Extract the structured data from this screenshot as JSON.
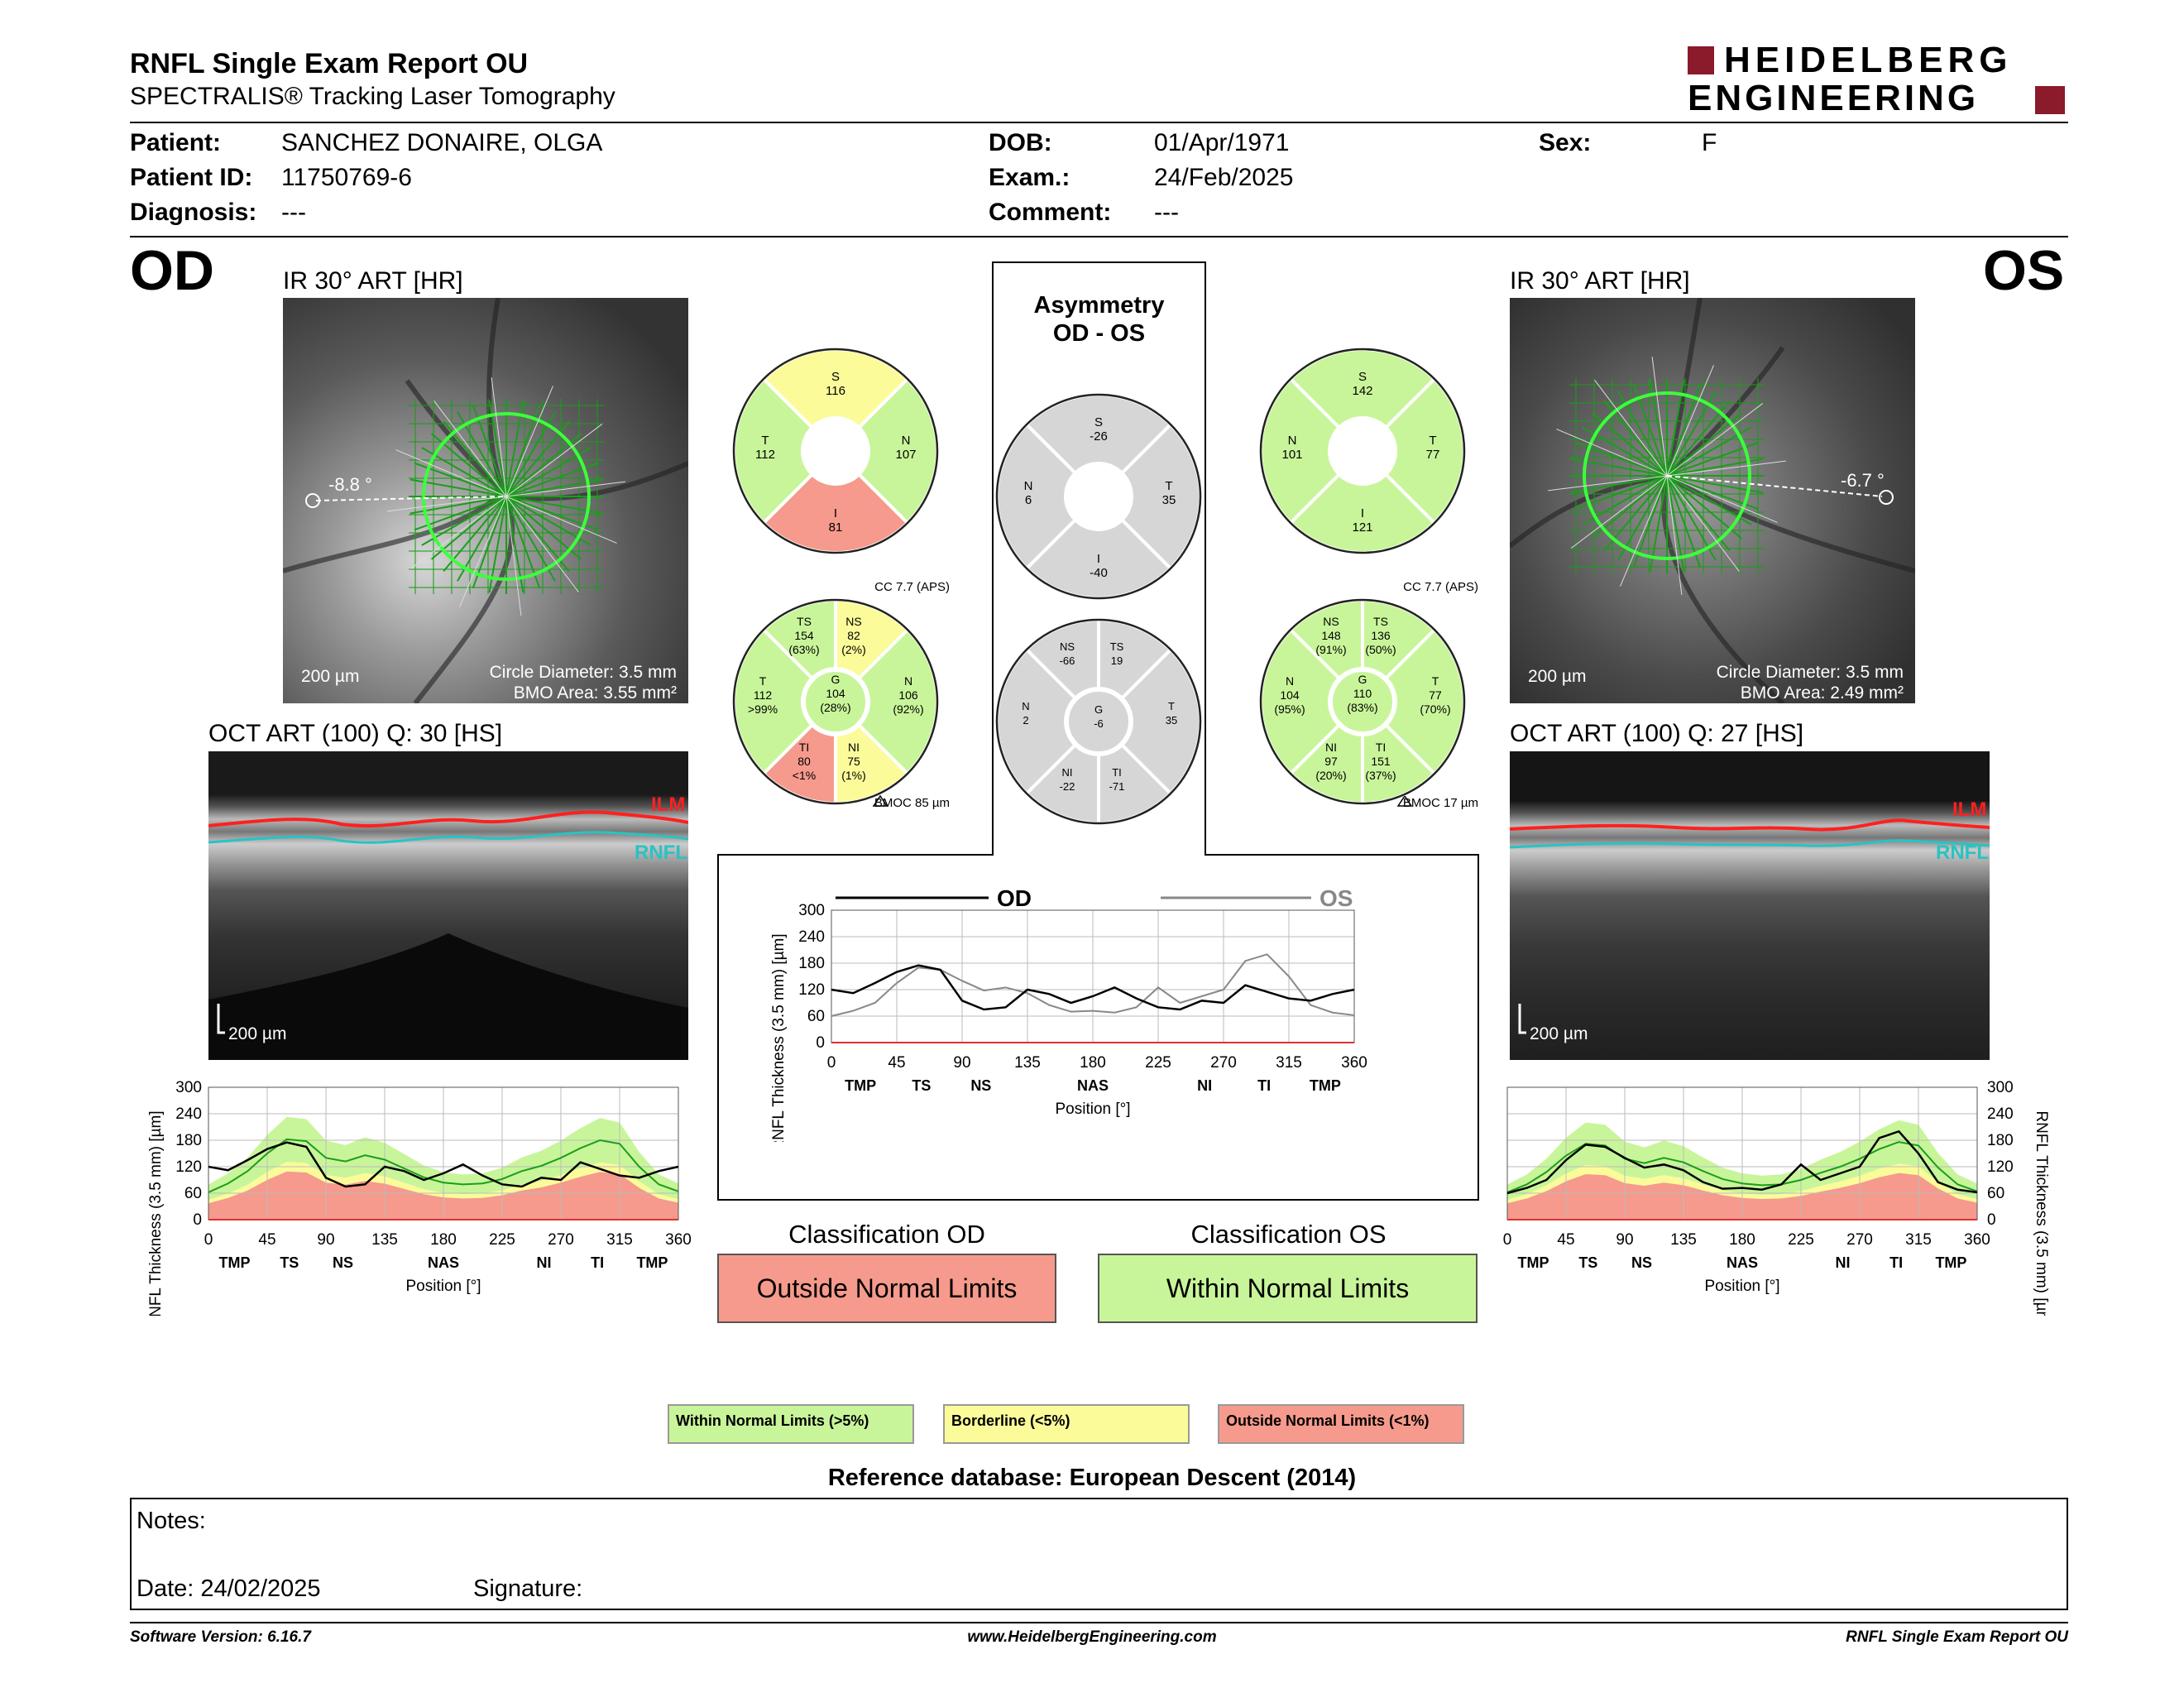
{
  "header": {
    "title": "RNFL Single Exam Report OU",
    "subtitle": "SPECTRALIS® Tracking Laser Tomography",
    "logo_line1": "HEIDELBERG",
    "logo_line2": "ENGINEERING"
  },
  "patient": {
    "patient_label": "Patient:",
    "patient_value": "SANCHEZ DONAIRE, OLGA",
    "id_label": "Patient ID:",
    "id_value": "11750769-6",
    "diagnosis_label": "Diagnosis:",
    "diagnosis_value": "---",
    "dob_label": "DOB:",
    "dob_value": "01/Apr/1971",
    "exam_label": "Exam.:",
    "exam_value": "24/Feb/2025",
    "comment_label": "Comment:",
    "comment_value": "---",
    "sex_label": "Sex:",
    "sex_value": "F"
  },
  "od": {
    "eye": "OD",
    "ir_caption": "IR 30° ART [HR]",
    "angle": "-8.8 °",
    "scale": "200 µm",
    "circle_diameter": "Circle Diameter: 3.5 mm",
    "bmo_area": "BMO Area: 3.55 mm²",
    "oct_caption": "OCT ART (100) Q: 30 [HS]",
    "oct_scale": "200 µm",
    "ilm": "ILM",
    "rnfl": "RNFL",
    "classification_label": "Classification OD",
    "classification_value": "Outside Normal Limits",
    "cc": "CC 7.7 (APS)",
    "bmoc": "BMOC 85 µm",
    "quad": {
      "S": "116",
      "T": "112",
      "N": "107",
      "I": "81"
    },
    "sector": {
      "TS": [
        "154",
        "(63%)"
      ],
      "NS": [
        "82",
        "(2%)"
      ],
      "T": [
        "112",
        ">99%"
      ],
      "G": [
        "104",
        "(28%)"
      ],
      "N": [
        "106",
        "(92%)"
      ],
      "TI": [
        "80",
        "<1%"
      ],
      "NI": [
        "75",
        "(1%)"
      ]
    }
  },
  "os": {
    "eye": "OS",
    "ir_caption": "IR 30° ART [HR]",
    "angle": "-6.7 °",
    "scale": "200 µm",
    "circle_diameter": "Circle Diameter: 3.5 mm",
    "bmo_area": "BMO Area: 2.49 mm²",
    "oct_caption": "OCT ART (100) Q: 27 [HS]",
    "oct_scale": "200 µm",
    "ilm": "ILM",
    "rnfl": "RNFL",
    "classification_label": "Classification OS",
    "classification_value": "Within Normal Limits",
    "cc": "CC 7.7 (APS)",
    "bmoc": "BMOC 17 µm",
    "quad": {
      "S": "142",
      "N": "101",
      "T": "77",
      "I": "121"
    },
    "sector": {
      "NS": [
        "148",
        "(91%)"
      ],
      "TS": [
        "136",
        "(50%)"
      ],
      "N": [
        "104",
        "(95%)"
      ],
      "G": [
        "110",
        "(83%)"
      ],
      "T": [
        "77",
        "(70%)"
      ],
      "NI": [
        "97",
        "(20%)"
      ],
      "TI": [
        "151",
        "(37%)"
      ]
    }
  },
  "asymmetry": {
    "title_line1": "Asymmetry",
    "title_line2": "OD - OS",
    "quad": {
      "S": "-26",
      "N": "6",
      "T": "35",
      "I": "-40"
    },
    "sector": {
      "NS": "-66",
      "TS": "19",
      "N": "2",
      "G": "-6",
      "T": "35",
      "NI": "-22",
      "TI": "-71"
    }
  },
  "legend": {
    "wnl": "Within Normal Limits (>5%)",
    "bl": "Borderline (<5%)",
    "onl": "Outside Normal Limits (<1%)",
    "reference": "Reference database: European Descent (2014)"
  },
  "notes": {
    "notes_label": "Notes:",
    "date_label": "Date: 24/02/2025",
    "signature_label": "Signature:"
  },
  "footer": {
    "version": "Software Version: 6.16.7",
    "website": "www.HeidelbergEngineering.com",
    "report": "RNFL Single Exam Report OU"
  },
  "colors": {
    "wnl": "#c9f59a",
    "bl": "#fbfb9a",
    "onl": "#f59a8c",
    "gray": "#d6d6d6",
    "logo_red": "#8b1a2b",
    "ilm": "#ff2020",
    "rnfl": "#29c3c3"
  },
  "chart_data": [
    {
      "type": "line",
      "id": "od-profile",
      "ylabel": "RNFL Thickness (3.5 mm) [µm]",
      "xlabel": "Position [°]",
      "ylim": [
        0,
        300
      ],
      "xlim": [
        0,
        360
      ],
      "yticks": [
        "0",
        "60",
        "120",
        "180",
        "240",
        "300"
      ],
      "xticks": [
        "0",
        "45",
        "90",
        "135",
        "180",
        "225",
        "270",
        "315",
        "360"
      ],
      "regions": [
        "TMP",
        "TS",
        "NS",
        "NAS",
        "NI",
        "TI",
        "TMP"
      ],
      "region_pos": [
        20,
        62,
        103,
        180,
        257,
        298,
        340
      ],
      "x": [
        0,
        15,
        30,
        45,
        60,
        75,
        90,
        105,
        120,
        135,
        150,
        165,
        180,
        195,
        210,
        225,
        240,
        255,
        270,
        285,
        300,
        315,
        330,
        345,
        360
      ],
      "series": [
        {
          "name": "OD",
          "values": [
            120,
            112,
            135,
            160,
            175,
            165,
            95,
            75,
            80,
            120,
            110,
            90,
            105,
            125,
            100,
            80,
            75,
            95,
            90,
            130,
            115,
            100,
            95,
            110,
            120
          ]
        },
        {
          "values": [
            62,
            82,
            110,
            150,
            182,
            178,
            140,
            132,
            146,
            136,
            116,
            96,
            84,
            80,
            82,
            92,
            110,
            122,
            140,
            162,
            180,
            172,
            120,
            80,
            64
          ]
        }
      ]
    },
    {
      "type": "line",
      "id": "os-profile",
      "ylabel": "RNFL Thickness (3.5 mm) [µm]",
      "xlabel": "Position [°]",
      "ylim": [
        0,
        300
      ],
      "xlim": [
        0,
        360
      ],
      "yticks": [
        "0",
        "60",
        "120",
        "180",
        "240",
        "300"
      ],
      "xticks": [
        "0",
        "45",
        "90",
        "135",
        "180",
        "225",
        "270",
        "315",
        "360"
      ],
      "regions": [
        "TMP",
        "TS",
        "NS",
        "NAS",
        "NI",
        "TI",
        "TMP"
      ],
      "region_pos": [
        20,
        62,
        103,
        180,
        257,
        298,
        340
      ],
      "x": [
        0,
        15,
        30,
        45,
        60,
        75,
        90,
        105,
        120,
        135,
        150,
        165,
        180,
        195,
        210,
        225,
        240,
        255,
        270,
        285,
        300,
        315,
        330,
        345,
        360
      ],
      "series": [
        {
          "name": "OS",
          "values": [
            60,
            72,
            90,
            135,
            170,
            165,
            140,
            118,
            125,
            112,
            85,
            70,
            72,
            68,
            80,
            125,
            90,
            105,
            120,
            185,
            200,
            150,
            85,
            68,
            62
          ]
        },
        {
          "values": [
            62,
            80,
            108,
            145,
            172,
            168,
            138,
            128,
            140,
            130,
            110,
            92,
            82,
            78,
            80,
            90,
            106,
            120,
            138,
            160,
            176,
            168,
            118,
            80,
            64
          ]
        }
      ]
    },
    {
      "type": "line",
      "id": "asym-profile",
      "ylabel": "RNFL Thickness (3.5 mm) [µm]",
      "xlabel": "Position [°]",
      "ylim": [
        0,
        300
      ],
      "xlim": [
        0,
        360
      ],
      "yticks": [
        "0",
        "60",
        "120",
        "180",
        "240",
        "300"
      ],
      "xticks": [
        "0",
        "45",
        "90",
        "135",
        "180",
        "225",
        "270",
        "315",
        "360"
      ],
      "regions": [
        "TMP",
        "TS",
        "NS",
        "NAS",
        "NI",
        "TI",
        "TMP"
      ],
      "region_pos": [
        20,
        62,
        103,
        180,
        257,
        298,
        340
      ],
      "legend_od": "OD",
      "legend_os": "OS",
      "x": [
        0,
        15,
        30,
        45,
        60,
        75,
        90,
        105,
        120,
        135,
        150,
        165,
        180,
        195,
        210,
        225,
        240,
        255,
        270,
        285,
        300,
        315,
        330,
        345,
        360
      ],
      "series": [
        {
          "name": "OD",
          "values": [
            120,
            112,
            135,
            160,
            175,
            165,
            95,
            75,
            80,
            120,
            110,
            90,
            105,
            125,
            100,
            80,
            75,
            95,
            90,
            130,
            115,
            100,
            95,
            110,
            120
          ]
        },
        {
          "name": "OS",
          "values": [
            60,
            72,
            90,
            135,
            170,
            165,
            140,
            118,
            125,
            112,
            85,
            70,
            72,
            68,
            80,
            125,
            90,
            105,
            120,
            185,
            200,
            150,
            85,
            68,
            62
          ]
        }
      ]
    }
  ]
}
